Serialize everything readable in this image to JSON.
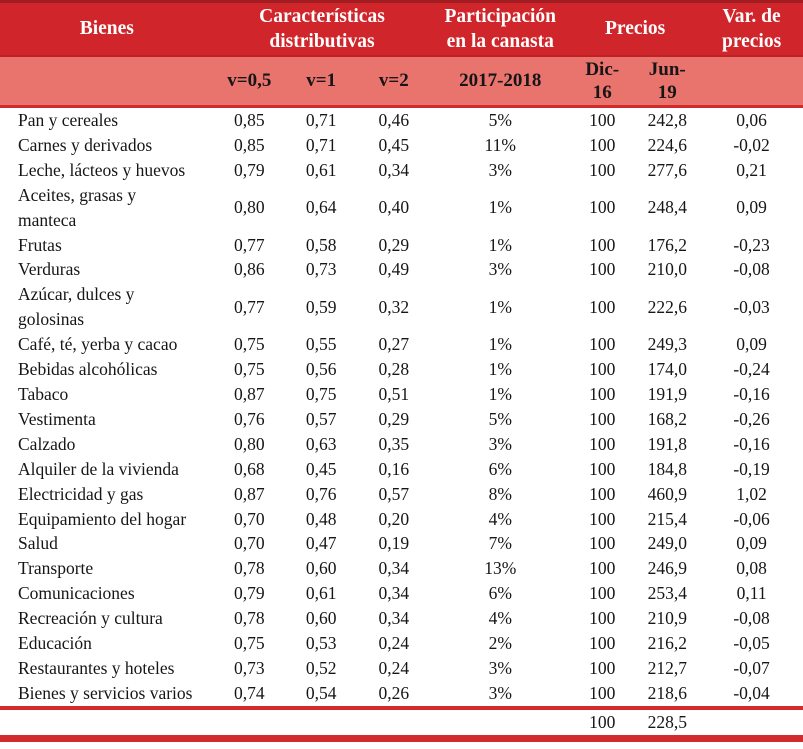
{
  "colors": {
    "band": "#d0262b",
    "band_dark": "#a21d22",
    "band_edge": "#bc2228",
    "salmon": "#e9736d",
    "rule": "#d22b2e",
    "header_text": "#ffffff"
  },
  "header": {
    "bienes": "Bienes",
    "caracteristicas": "Características\ndistributivas",
    "participacion": "Participación\nen la canasta",
    "precios": "Precios",
    "var_precios": "Var. de\nprecios"
  },
  "subheader": {
    "v05": "v=0,5",
    "v1": "v=1",
    "v2": "v=2",
    "period": "2017-2018",
    "dic16": "Dic-\n16",
    "jun19": "Jun-\n19"
  },
  "rows": [
    {
      "label": "Pan y cereales",
      "cells": [
        "0,85",
        "0,71",
        "0,46",
        "5%",
        "100",
        "242,8",
        "0,06"
      ]
    },
    {
      "label": "Carnes y derivados",
      "cells": [
        "0,85",
        "0,71",
        "0,45",
        "11%",
        "100",
        "224,6",
        "-0,02"
      ]
    },
    {
      "label": "Leche, lácteos y huevos",
      "cells": [
        "0,79",
        "0,61",
        "0,34",
        "3%",
        "100",
        "277,6",
        "0,21"
      ]
    },
    {
      "label": "Aceites, grasas y\nmanteca",
      "cells": [
        "0,80",
        "0,64",
        "0,40",
        "1%",
        "100",
        "248,4",
        "0,09"
      ]
    },
    {
      "label": "Frutas",
      "cells": [
        "0,77",
        "0,58",
        "0,29",
        "1%",
        "100",
        "176,2",
        "-0,23"
      ]
    },
    {
      "label": "Verduras",
      "cells": [
        "0,86",
        "0,73",
        "0,49",
        "3%",
        "100",
        "210,0",
        "-0,08"
      ]
    },
    {
      "label": "Azúcar, dulces y\ngolosinas",
      "cells": [
        "0,77",
        "0,59",
        "0,32",
        "1%",
        "100",
        "222,6",
        "-0,03"
      ]
    },
    {
      "label": "Café, té, yerba y cacao",
      "cells": [
        "0,75",
        "0,55",
        "0,27",
        "1%",
        "100",
        "249,3",
        "0,09"
      ]
    },
    {
      "label": "Bebidas alcohólicas",
      "cells": [
        "0,75",
        "0,56",
        "0,28",
        "1%",
        "100",
        "174,0",
        "-0,24"
      ]
    },
    {
      "label": "Tabaco",
      "cells": [
        "0,87",
        "0,75",
        "0,51",
        "1%",
        "100",
        "191,9",
        "-0,16"
      ]
    },
    {
      "label": "Vestimenta",
      "cells": [
        "0,76",
        "0,57",
        "0,29",
        "5%",
        "100",
        "168,2",
        "-0,26"
      ]
    },
    {
      "label": "Calzado",
      "cells": [
        "0,80",
        "0,63",
        "0,35",
        "3%",
        "100",
        "191,8",
        "-0,16"
      ]
    },
    {
      "label": "Alquiler de la vivienda",
      "cells": [
        "0,68",
        "0,45",
        "0,16",
        "6%",
        "100",
        "184,8",
        "-0,19"
      ]
    },
    {
      "label": "Electricidad y gas",
      "cells": [
        "0,87",
        "0,76",
        "0,57",
        "8%",
        "100",
        "460,9",
        "1,02"
      ]
    },
    {
      "label": "Equipamiento del hogar",
      "cells": [
        "0,70",
        "0,48",
        "0,20",
        "4%",
        "100",
        "215,4",
        "-0,06"
      ]
    },
    {
      "label": "Salud",
      "cells": [
        "0,70",
        "0,47",
        "0,19",
        "7%",
        "100",
        "249,0",
        "0,09"
      ]
    },
    {
      "label": "Transporte",
      "cells": [
        "0,78",
        "0,60",
        "0,34",
        "13%",
        "100",
        "246,9",
        "0,08"
      ]
    },
    {
      "label": "Comunicaciones",
      "cells": [
        "0,79",
        "0,61",
        "0,34",
        "6%",
        "100",
        "253,4",
        "0,11"
      ]
    },
    {
      "label": "Recreación y cultura",
      "cells": [
        "0,78",
        "0,60",
        "0,34",
        "4%",
        "100",
        "210,9",
        "-0,08"
      ]
    },
    {
      "label": "Educación",
      "cells": [
        "0,75",
        "0,53",
        "0,24",
        "2%",
        "100",
        "216,2",
        "-0,05"
      ]
    },
    {
      "label": "Restaurantes y hoteles",
      "cells": [
        "0,73",
        "0,52",
        "0,24",
        "3%",
        "100",
        "212,7",
        "-0,07"
      ]
    },
    {
      "label": "Bienes y servicios varios",
      "cells": [
        "0,74",
        "0,54",
        "0,26",
        "3%",
        "100",
        "218,6",
        "-0,04"
      ]
    }
  ],
  "summary": {
    "dic16": "100",
    "jun19": "228,5"
  }
}
